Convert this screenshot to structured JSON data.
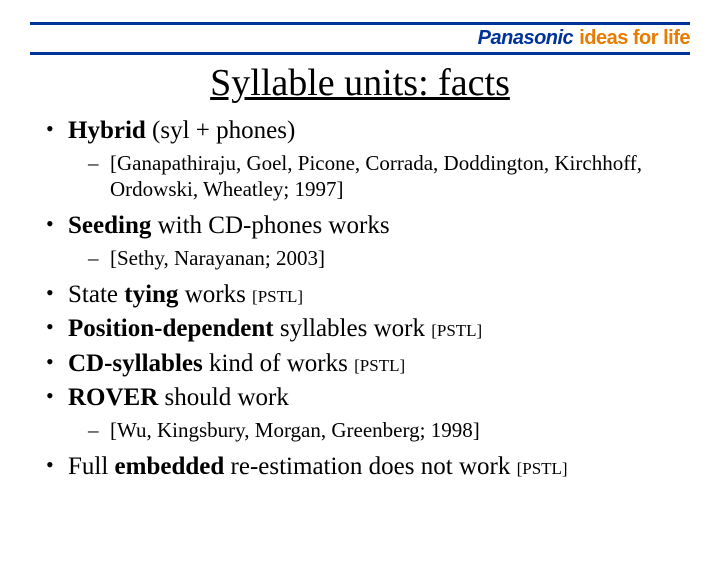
{
  "colors": {
    "rule": "#003399",
    "logo_primary": "#003399",
    "logo_accent": "#e87b00",
    "text": "#000000",
    "background": "#ffffff"
  },
  "logo": {
    "brand": "Panasonic",
    "tagline": "ideas for life"
  },
  "title": "Syllable units: facts",
  "bullets": {
    "b1": {
      "bold": "Hybrid",
      "rest": " (syl + phones)",
      "sub": "[Ganapathiraju, Goel, Picone, Corrada, Doddington, Kirchhoff, Ordowski, Wheatley; 1997]"
    },
    "b2": {
      "bold": "Seeding",
      "rest": " with CD-phones works",
      "sub": " [Sethy, Narayanan; 2003]"
    },
    "b3": {
      "pre": " State ",
      "bold": "tying",
      "post": " works ",
      "tag": "[PSTL]"
    },
    "b4": {
      "bold": " Position-dependent",
      "post": " syllables work ",
      "tag": "[PSTL]"
    },
    "b5": {
      "bold": " CD-syllables",
      "post": " kind of works ",
      "tag": "[PSTL]"
    },
    "b6": {
      "bold": " ROVER",
      "post": " should work",
      "sub": "[Wu, Kingsbury, Morgan, Greenberg; 1998]"
    },
    "b7": {
      "pre": "Full ",
      "bold": "embedded",
      "post": " re-estimation does not work ",
      "tag": "[PSTL]"
    }
  }
}
